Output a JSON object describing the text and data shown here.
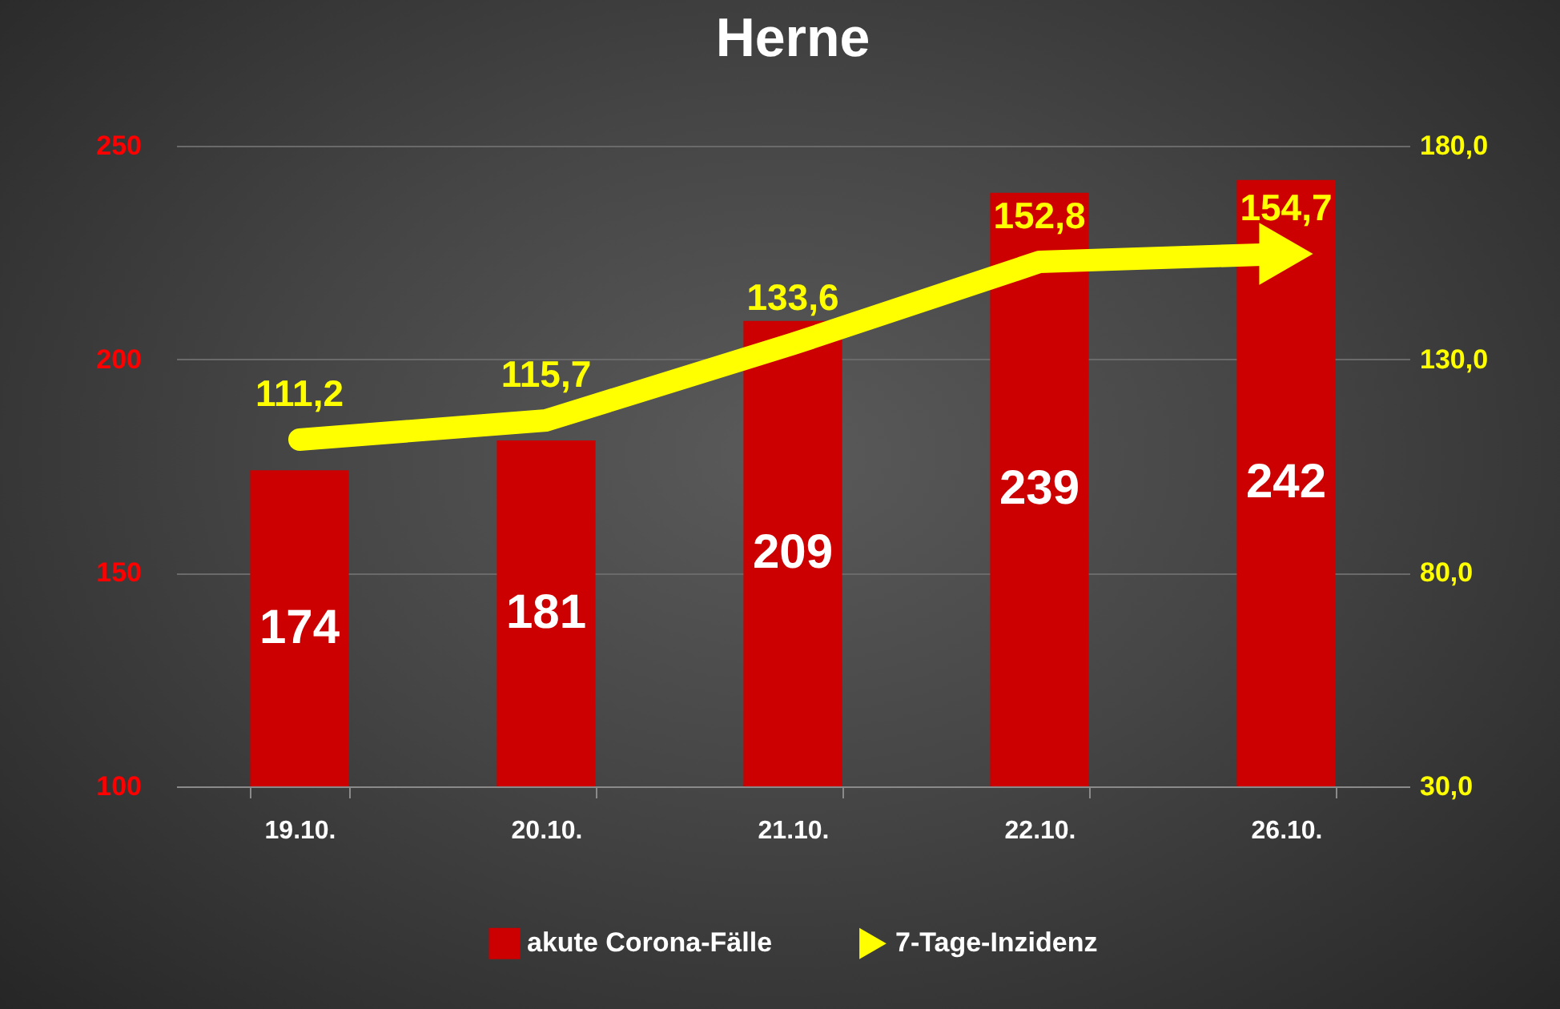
{
  "chart_data": {
    "type": "bar",
    "title": "Herne",
    "categories": [
      "19.10.",
      "20.10.",
      "21.10.",
      "22.10.",
      "26.10."
    ],
    "series": [
      {
        "name": "akute Corona-Fälle",
        "color": "#cc0000",
        "values": [
          174,
          181,
          209,
          239,
          242
        ],
        "value_labels": [
          "174",
          "181",
          "209",
          "239",
          "242"
        ]
      },
      {
        "name": "7-Tage-Inzidenz",
        "type": "line",
        "axis": "y2",
        "color": "#ffff00",
        "values": [
          111.2,
          115.7,
          133.6,
          152.8,
          154.7
        ],
        "value_labels": [
          "111,2",
          "115,7",
          "133,6",
          "152,8",
          "154,7"
        ]
      }
    ],
    "ylim": [
      100,
      250
    ],
    "yticks": [
      100,
      150,
      200,
      250
    ],
    "y2lim": [
      30,
      180
    ],
    "y2ticks": [
      {
        "value": 30,
        "label": "30,0"
      },
      {
        "value": 80,
        "label": "80,0"
      },
      {
        "value": 130,
        "label": "130,0"
      },
      {
        "value": 180,
        "label": "180,0"
      }
    ],
    "grid": "y",
    "legend": "bottom"
  }
}
